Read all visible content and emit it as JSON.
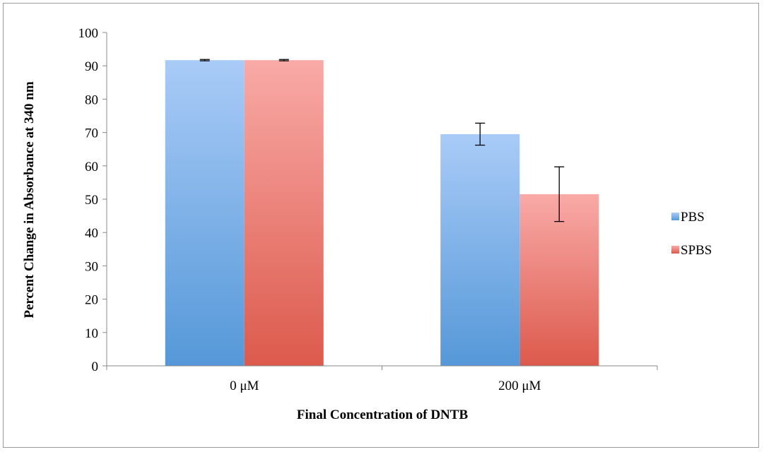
{
  "chart_data": {
    "type": "bar",
    "title": "",
    "xlabel": "Final Concentration of DNTB",
    "ylabel": "Percent Change in Absorbance at 340 nm",
    "categories": [
      "0 μM",
      "200 μM"
    ],
    "ylim": [
      0,
      100
    ],
    "yticks": [
      0,
      10,
      20,
      30,
      40,
      50,
      60,
      70,
      80,
      90,
      100
    ],
    "grid": false,
    "legend_position": "right",
    "series": [
      {
        "name": "PBS",
        "values": [
          91.7,
          69.5
        ],
        "errors": [
          0.2,
          3.3
        ],
        "color_top": "#a9cbf7",
        "color_bottom": "#5598d8"
      },
      {
        "name": "SPBS",
        "values": [
          91.7,
          51.5
        ],
        "errors": [
          0.2,
          8.2
        ],
        "color_top": "#f9aaa7",
        "color_bottom": "#dc5a4c"
      }
    ]
  }
}
